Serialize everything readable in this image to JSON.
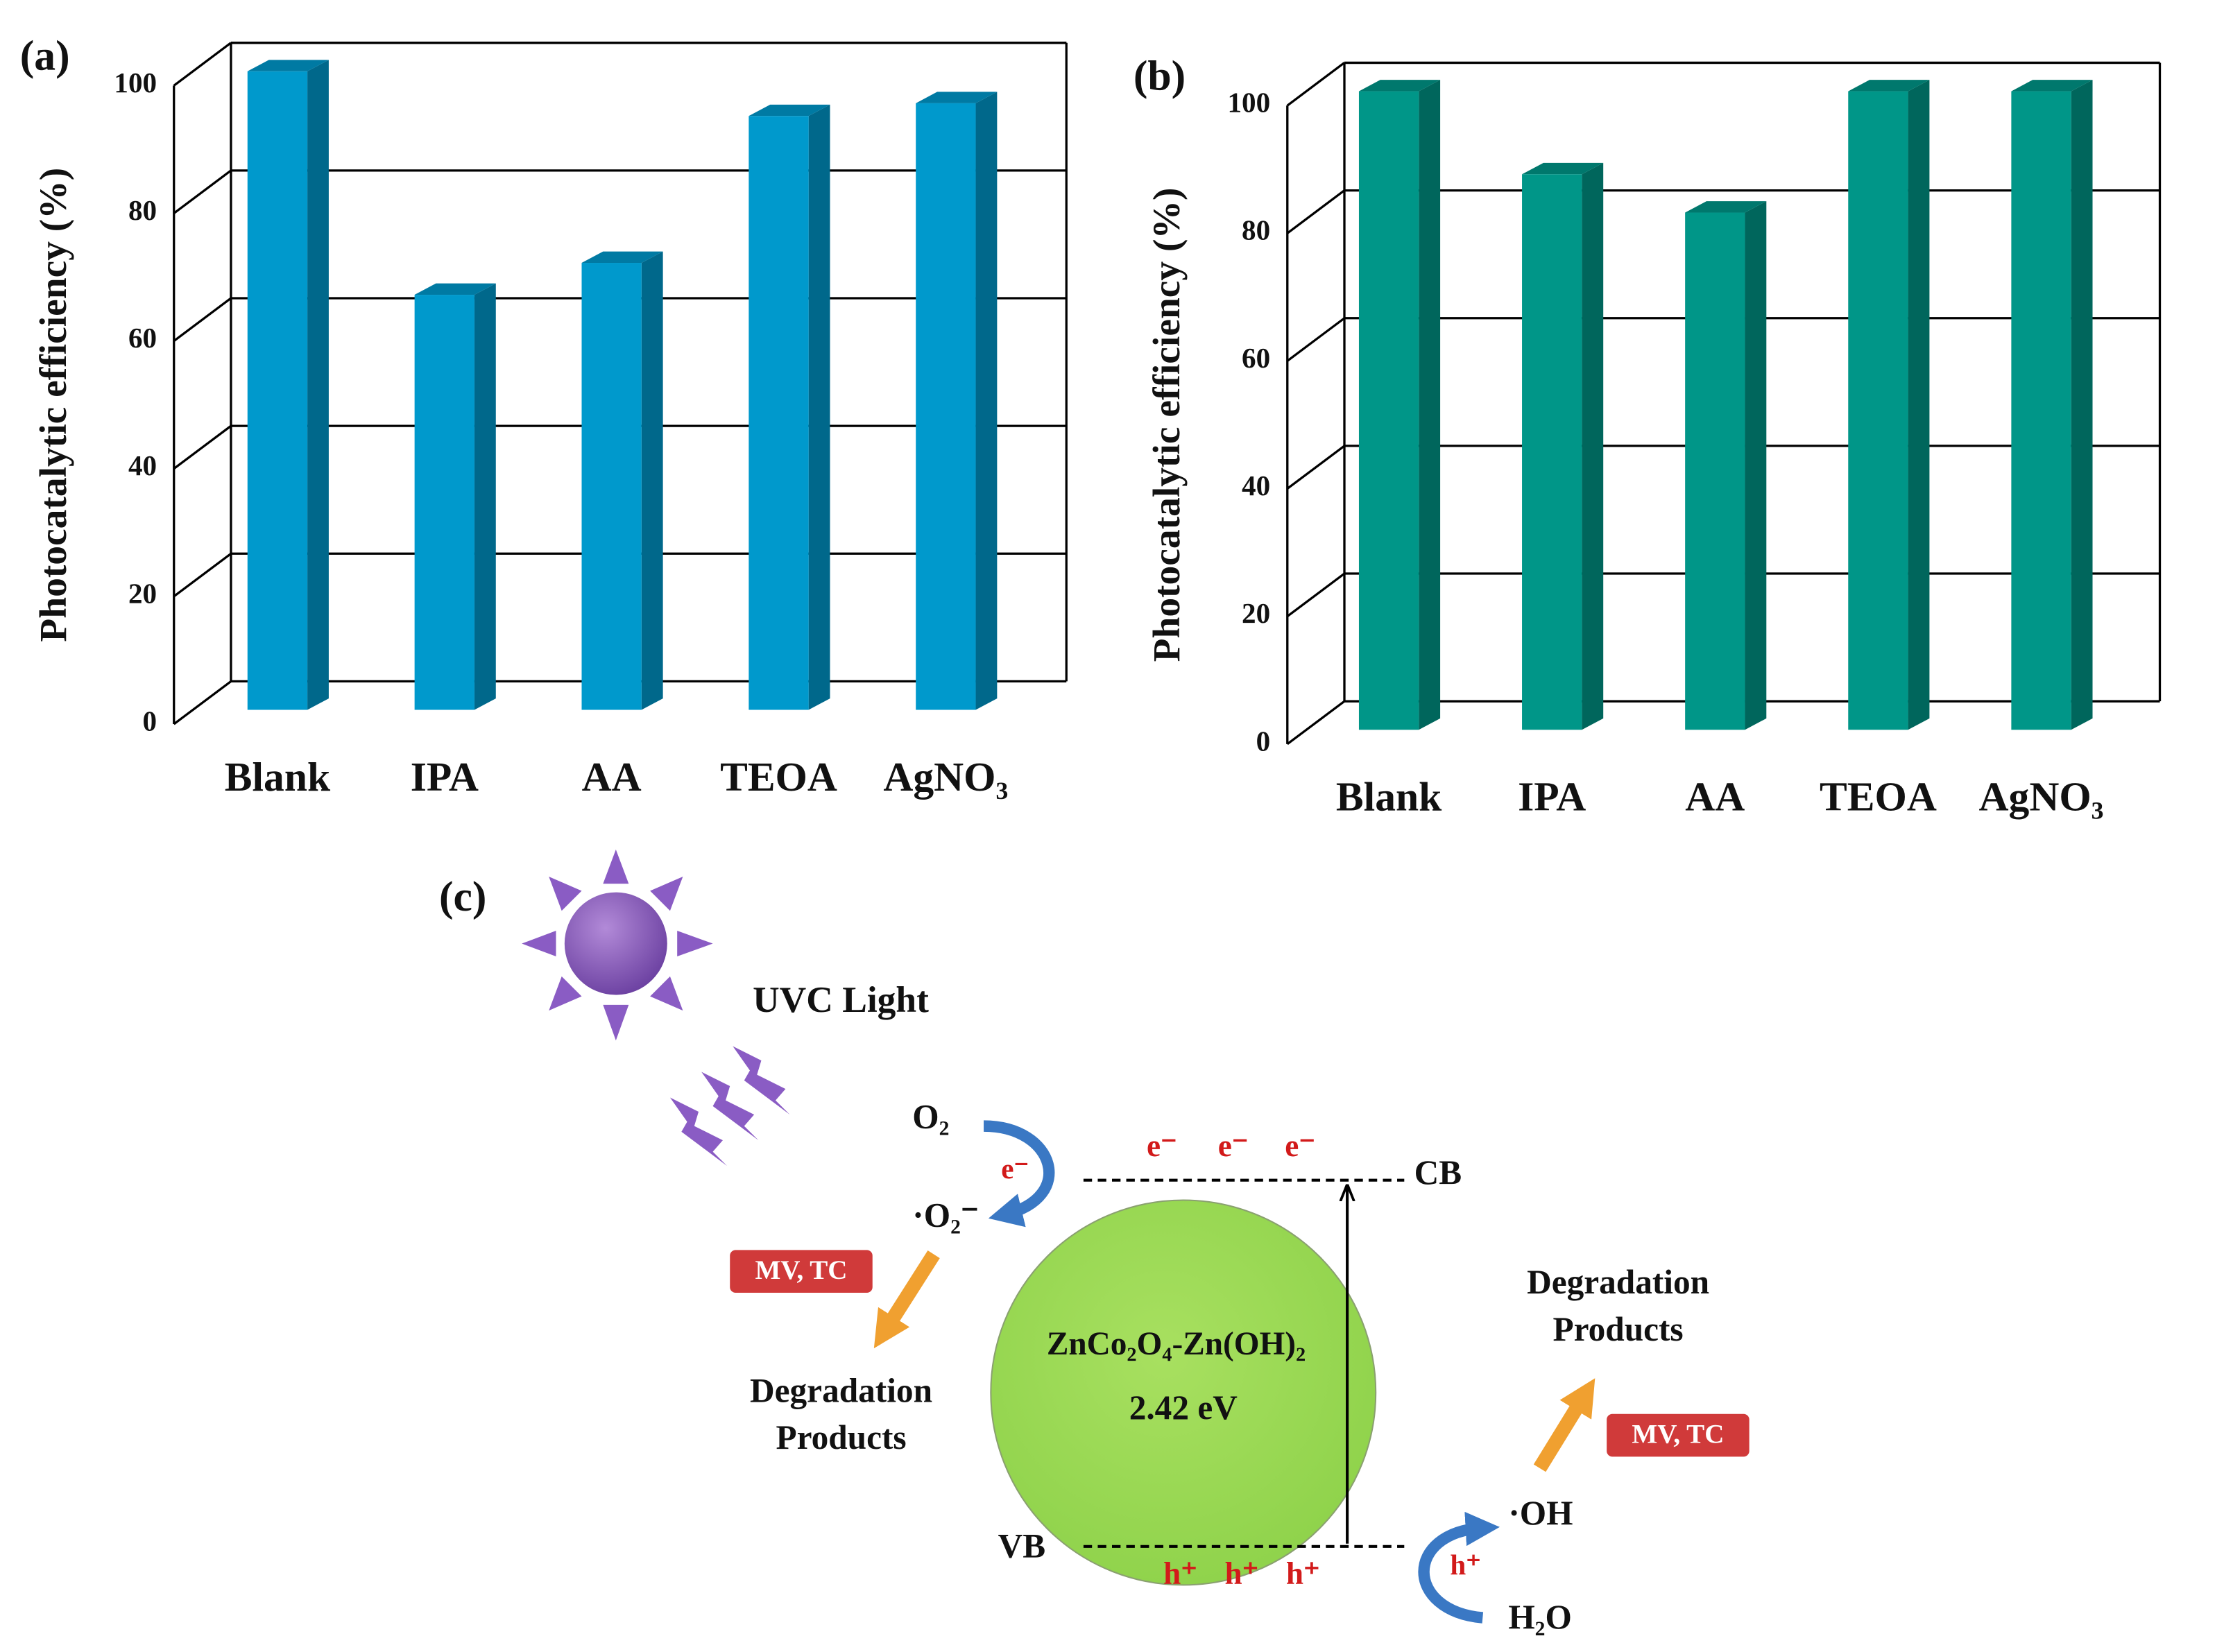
{
  "chart_data": [
    {
      "type": "bar",
      "title": "(a)",
      "y_label": "Photocatalytic efficiency (%)",
      "categories": [
        "Blank",
        "IPA",
        "AA",
        "TEOA",
        "AgNO₃"
      ],
      "values": [
        100,
        65,
        70,
        93,
        95
      ],
      "color": "#0099cc",
      "ylim": [
        0,
        100
      ],
      "yticks": [
        0,
        20,
        40,
        60,
        80,
        100
      ],
      "grid": true
    },
    {
      "type": "bar",
      "title": "(b)",
      "y_label": "Photocatalytic efficiency (%)",
      "categories": [
        "Blank",
        "IPA",
        "AA",
        "TEOA",
        "AgNO₃"
      ],
      "values": [
        100,
        87,
        81,
        100,
        100
      ],
      "color": "#009688",
      "ylim": [
        0,
        100
      ],
      "yticks": [
        0,
        20,
        40,
        60,
        80,
        100
      ],
      "grid": true
    }
  ],
  "diagram": {
    "title": "(c)",
    "light": "UVC Light",
    "oxygen": "O₂",
    "superoxide": "·O₂⁻",
    "electron": "e⁻",
    "electrons": [
      "e⁻",
      "e⁻",
      "e⁻"
    ],
    "cb": "CB",
    "vb": "VB",
    "holes": [
      "h⁺",
      "h⁺",
      "h⁺"
    ],
    "hole": "h⁺",
    "catalyst": "ZnCo₂O₄-Zn(OH)₂",
    "band_gap": "2.42 eV",
    "pollutant_left": "MV, TC",
    "pollutant_right": "MV, TC",
    "products_left": [
      "Degradation",
      "Products"
    ],
    "products_right": [
      "Degradation",
      "Products"
    ],
    "hydroxyl": "·OH",
    "water": "H₂O"
  }
}
